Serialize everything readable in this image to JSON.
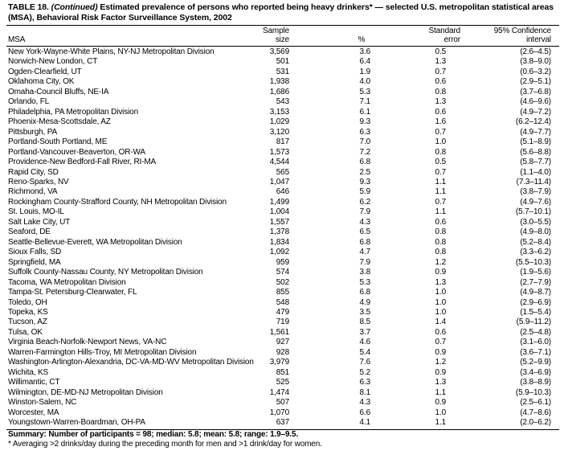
{
  "title": {
    "label": "TABLE 18.",
    "continued": "(Continued)",
    "text": "Estimated prevalence of persons who reported being heavy drinkers* — selected U.S. metropolitan statistical areas (MSA), Behavioral Risk Factor Surveillance System, 2002"
  },
  "table": {
    "headers": [
      "MSA",
      "Sample size",
      "%",
      "Standard error",
      "95% Confidence interval"
    ],
    "rows": [
      [
        "New York-Wayne-White Plains, NY-NJ Metropolitan Division",
        "3,569",
        "3.6",
        "0.5",
        "(2.6–4.5)"
      ],
      [
        "Norwich-New London, CT",
        "501",
        "6.4",
        "1.3",
        "(3.8–9.0)"
      ],
      [
        "Ogden-Clearfield, UT",
        "531",
        "1.9",
        "0.7",
        "(0.6–3.2)"
      ],
      [
        "Oklahoma City, OK",
        "1,938",
        "4.0",
        "0.6",
        "(2.9–5.1)"
      ],
      [
        "Omaha-Council Bluffs, NE-IA",
        "1,686",
        "5.3",
        "0.8",
        "(3.7–6.8)"
      ],
      [
        "Orlando, FL",
        "543",
        "7.1",
        "1.3",
        "(4.6–9.6)"
      ],
      [
        "Philadelphia, PA Metropolitan Division",
        "3,153",
        "6.1",
        "0.6",
        "(4.9–7.2)"
      ],
      [
        "Phoenix-Mesa-Scottsdale, AZ",
        "1,029",
        "9.3",
        "1.6",
        "(6.2–12.4)"
      ],
      [
        "Pittsburgh, PA",
        "3,120",
        "6.3",
        "0.7",
        "(4.9–7.7)"
      ],
      [
        "Portland-South Portland, ME",
        "817",
        "7.0",
        "1.0",
        "(5.1–8.9)"
      ],
      [
        "Portland-Vancouver-Beaverton, OR-WA",
        "1,573",
        "7.2",
        "0.8",
        "(5.6–8.8)"
      ],
      [
        "Providence-New Bedford-Fall River, RI-MA",
        "4,544",
        "6.8",
        "0.5",
        "(5.8–7.7)"
      ],
      [
        "Rapid City, SD",
        "565",
        "2.5",
        "0.7",
        "(1.1–4.0)"
      ],
      [
        "Reno-Sparks, NV",
        "1,047",
        "9.3",
        "1.1",
        "(7.3–11.4)"
      ],
      [
        "Richmond, VA",
        "646",
        "5.9",
        "1.1",
        "(3.8–7.9)"
      ],
      [
        "Rockingham County-Strafford County, NH Metropolitan Division",
        "1,499",
        "6.2",
        "0.7",
        "(4.9–7.6)"
      ],
      [
        "St. Louis, MO-IL",
        "1,004",
        "7.9",
        "1.1",
        "(5.7–10.1)"
      ],
      [
        "Salt Lake City, UT",
        "1,557",
        "4.3",
        "0.6",
        "(3.0–5.5)"
      ],
      [
        "Seaford, DE",
        "1,378",
        "6.5",
        "0.8",
        "(4.9–8.0)"
      ],
      [
        "Seattle-Bellevue-Everett, WA Metropolitan Division",
        "1,834",
        "6.8",
        "0.8",
        "(5.2–8.4)"
      ],
      [
        "Sioux Falls, SD",
        "1,092",
        "4.7",
        "0.8",
        "(3.3–6.2)"
      ],
      [
        "Springfield, MA",
        "959",
        "7.9",
        "1.2",
        "(5.5–10.3)"
      ],
      [
        "Suffolk County-Nassau County, NY Metropolitan Division",
        "574",
        "3.8",
        "0.9",
        "(1.9–5.6)"
      ],
      [
        "Tacoma, WA Metropolitan Division",
        "502",
        "5.3",
        "1.3",
        "(2.7–7.9)"
      ],
      [
        "Tampa-St. Petersburg-Clearwater, FL",
        "855",
        "6.8",
        "1.0",
        "(4.9–8.7)"
      ],
      [
        "Toledo, OH",
        "548",
        "4.9",
        "1.0",
        "(2.9–6.9)"
      ],
      [
        "Topeka, KS",
        "479",
        "3.5",
        "1.0",
        "(1.5–5.4)"
      ],
      [
        "Tucson, AZ",
        "719",
        "8.5",
        "1.4",
        "(5.9–11.2)"
      ],
      [
        "Tulsa, OK",
        "1,561",
        "3.7",
        "0.6",
        "(2.5–4.8)"
      ],
      [
        "Virginia Beach-Norfolk-Newport News, VA-NC",
        "927",
        "4.6",
        "0.7",
        "(3.1–6.0)"
      ],
      [
        "Warren-Farmington Hills-Troy, MI Metropolitan Division",
        "928",
        "5.4",
        "0.9",
        "(3.6–7.1)"
      ],
      [
        "Washington-Arlington-Alexandria, DC-VA-MD-WV Metropolitan Division",
        "3,979",
        "7.6",
        "1.2",
        "(5.2–9.9)"
      ],
      [
        "Wichita, KS",
        "851",
        "5.2",
        "0.9",
        "(3.4–6.9)"
      ],
      [
        "Willimantic, CT",
        "525",
        "6.3",
        "1.3",
        "(3.8–8.9)"
      ],
      [
        "Wilmington, DE-MD-NJ Metropolitan Division",
        "1,474",
        "8.1",
        "1.1",
        "(5.9–10.3)"
      ],
      [
        "Winston-Salem, NC",
        "507",
        "4.3",
        "0.9",
        "(2.5–6.1)"
      ],
      [
        "Worcester, MA",
        "1,070",
        "6.6",
        "1.0",
        "(4.7–8.6)"
      ],
      [
        "Youngstown-Warren-Boardman, OH-PA",
        "637",
        "4.1",
        "1.1",
        "(2.0–6.2)"
      ]
    ]
  },
  "summary": "Summary: Number of participants = 98; median: 5.8; mean: 5.8; range: 1.9–9.5.",
  "footnote": "* Averaging >2 drinks/day during the preceding month for men and >1 drink/day for women."
}
